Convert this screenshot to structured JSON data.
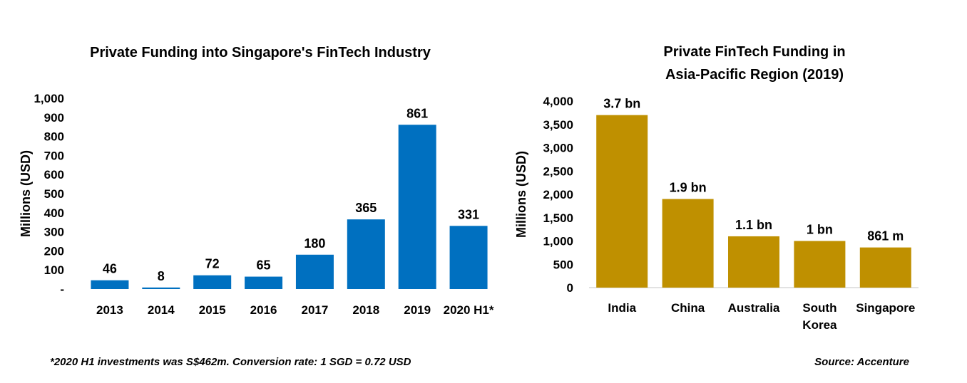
{
  "chart_data": [
    {
      "type": "bar",
      "title": "Private Funding into Singapore's FinTech Industry",
      "ylabel": "Millions (USD)",
      "xlabel": "",
      "categories": [
        "2013",
        "2014",
        "2015",
        "2016",
        "2017",
        "2018",
        "2019",
        "2020 H1*"
      ],
      "values": [
        46,
        8,
        72,
        65,
        180,
        365,
        861,
        331
      ],
      "data_labels": [
        "46",
        "8",
        "72",
        "65",
        "180",
        "365",
        "861",
        "331"
      ],
      "ylim": [
        0,
        1000
      ],
      "yticks": [
        {
          "value": 0,
          "label": "-"
        },
        {
          "value": 100,
          "label": "100"
        },
        {
          "value": 200,
          "label": "200"
        },
        {
          "value": 300,
          "label": "300"
        },
        {
          "value": 400,
          "label": "400"
        },
        {
          "value": 500,
          "label": "500"
        },
        {
          "value": 600,
          "label": "600"
        },
        {
          "value": 700,
          "label": "700"
        },
        {
          "value": 800,
          "label": "800"
        },
        {
          "value": 900,
          "label": "900"
        },
        {
          "value": 1000,
          "label": "1,000"
        }
      ],
      "color": "#0070C0",
      "grid": false
    },
    {
      "type": "bar",
      "title": "Private FinTech Funding in Asia-Pacific Region (2019)",
      "title_lines": [
        "Private FinTech Funding in",
        "Asia-Pacific Region (2019)"
      ],
      "ylabel": "Millions (USD)",
      "xlabel": "",
      "categories": [
        "India",
        "China",
        "Australia",
        "South Korea",
        "Singapore"
      ],
      "category_lines": [
        [
          "India"
        ],
        [
          "China"
        ],
        [
          "Australia"
        ],
        [
          "South",
          "Korea"
        ],
        [
          "Singapore"
        ]
      ],
      "values": [
        3700,
        1900,
        1100,
        1000,
        861
      ],
      "data_labels": [
        "3.7 bn",
        "1.9 bn",
        "1.1 bn",
        "1 bn",
        "861 m"
      ],
      "ylim": [
        0,
        4000
      ],
      "yticks": [
        {
          "value": 0,
          "label": "0"
        },
        {
          "value": 500,
          "label": "500"
        },
        {
          "value": 1000,
          "label": "1,000"
        },
        {
          "value": 1500,
          "label": "1,500"
        },
        {
          "value": 2000,
          "label": "2,000"
        },
        {
          "value": 2500,
          "label": "2,500"
        },
        {
          "value": 3000,
          "label": "3,000"
        },
        {
          "value": 3500,
          "label": "3,500"
        },
        {
          "value": 4000,
          "label": "4,000"
        }
      ],
      "color": "#BF9000",
      "grid": false
    }
  ],
  "footnotes": {
    "left": "*2020 H1 investments was S$462m. Conversion rate: 1 SGD = 0.72 USD",
    "right": "Source: Accenture"
  }
}
